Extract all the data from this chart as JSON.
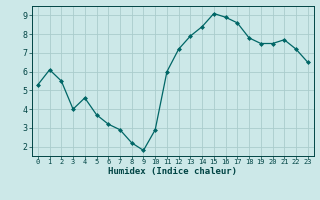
{
  "x": [
    0,
    1,
    2,
    3,
    4,
    5,
    6,
    7,
    8,
    9,
    10,
    11,
    12,
    13,
    14,
    15,
    16,
    17,
    18,
    19,
    20,
    21,
    22,
    23
  ],
  "y": [
    5.3,
    6.1,
    5.5,
    4.0,
    4.6,
    3.7,
    3.2,
    2.9,
    2.2,
    1.8,
    2.9,
    6.0,
    7.2,
    7.9,
    8.4,
    9.1,
    8.9,
    8.6,
    7.8,
    7.5,
    7.5,
    7.7,
    7.2,
    6.5
  ],
  "xlabel": "Humidex (Indice chaleur)",
  "ylim": [
    1.5,
    9.5
  ],
  "xlim": [
    -0.5,
    23.5
  ],
  "line_color": "#006666",
  "marker": "D",
  "marker_size": 2.0,
  "bg_color": "#cce8e8",
  "grid_color": "#aacccc",
  "tick_labels": [
    "0",
    "1",
    "2",
    "3",
    "4",
    "5",
    "6",
    "7",
    "8",
    "9",
    "10",
    "11",
    "12",
    "13",
    "14",
    "15",
    "16",
    "17",
    "18",
    "19",
    "20",
    "21",
    "22",
    "23"
  ],
  "yticks": [
    2,
    3,
    4,
    5,
    6,
    7,
    8,
    9
  ],
  "font_color": "#004444"
}
